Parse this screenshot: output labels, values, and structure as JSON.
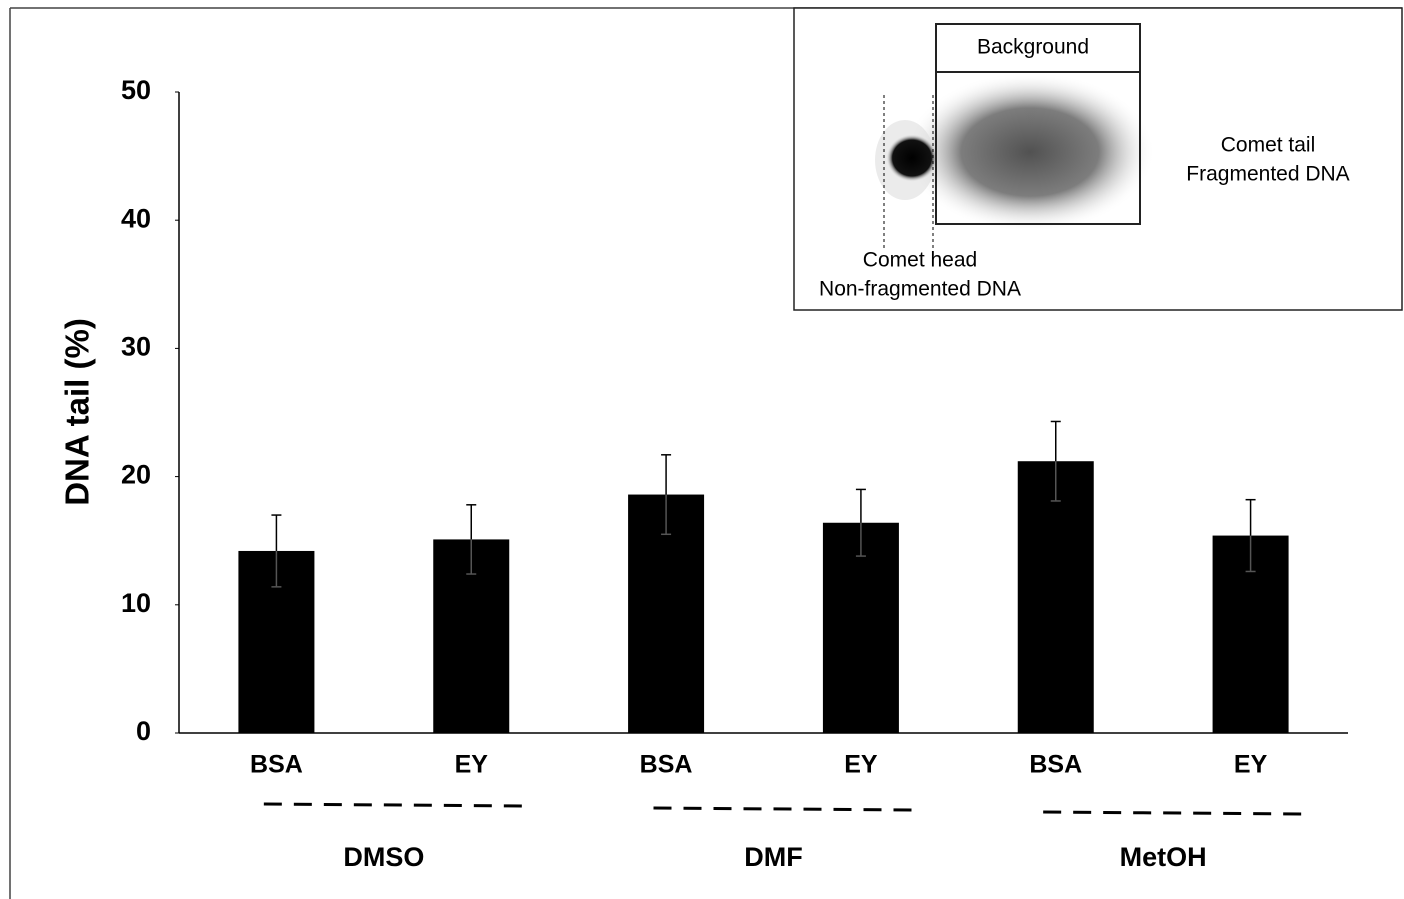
{
  "chart_data": {
    "type": "bar",
    "ylabel": "DNA tail (%)",
    "categories": [
      "BSA",
      "EY",
      "BSA",
      "EY",
      "BSA",
      "EY"
    ],
    "groups": [
      "DMSO",
      "DMF",
      "MetOH"
    ],
    "values": [
      14.2,
      15.1,
      18.6,
      16.4,
      21.2,
      15.4
    ],
    "errors": [
      2.8,
      2.7,
      3.1,
      2.6,
      3.1,
      2.8
    ],
    "color": "#000000",
    "ylim": [
      0,
      50
    ],
    "yticks": [
      0,
      10,
      20,
      30,
      40,
      50
    ],
    "annotations": [
      "Background",
      "Comet tail",
      "Fragmented DNA",
      "Comet head",
      "Non-fragmented DNA"
    ]
  }
}
